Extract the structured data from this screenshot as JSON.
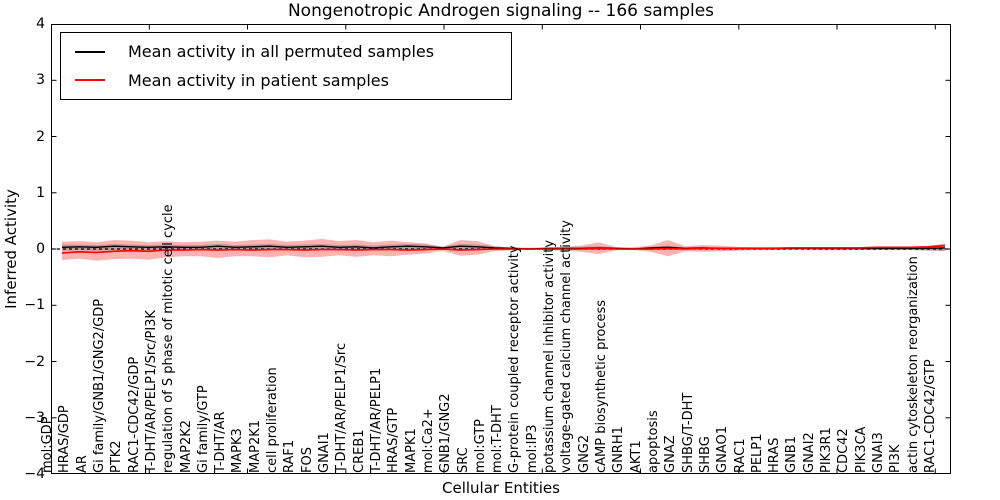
{
  "chart_data": {
    "type": "line",
    "title": "Nongenotropic Androgen signaling -- 166 samples",
    "xlabel": "Cellular Entities",
    "ylabel": "Inferred Activity",
    "ylim": [
      -4,
      4
    ],
    "yticks": [
      "4",
      "3",
      "2",
      "1",
      "0",
      "−1",
      "−2",
      "−3",
      "−4"
    ],
    "ytick_values": [
      4,
      3,
      2,
      1,
      0,
      -1,
      -2,
      -3,
      -4
    ],
    "grid": false,
    "legend_position": "upper left",
    "zero_line": {
      "value": 0,
      "style": "dashed",
      "color": "#000000"
    },
    "categories": [
      "mol:GDP",
      "HRAS/GDP",
      "AR",
      "Gi family/GNB1/GNG2/GDP",
      "PTK2",
      "RAC1-CDC42/GDP",
      "T-DHT/AR/PELP1/Src/PI3K",
      "regulation of S phase of mitotic cell cycle",
      "MAP2K2",
      "Gi family/GTP",
      "T-DHT/AR",
      "MAPK3",
      "MAP2K1",
      "cell proliferation",
      "RAF1",
      "FOS",
      "GNAI1",
      "T-DHT/AR/PELP1/Src",
      "CREB1",
      "T-DHT/AR/PELP1",
      "HRAS/GTP",
      "MAPK1",
      "mol:Ca2+",
      "GNB1/GNG2",
      "SRC",
      "mol:GTP",
      "mol:T-DHT",
      "G-protein coupled receptor activity",
      "mol:IP3",
      "potassium channel inhibitor activity",
      "voltage-gated calcium channel activity",
      "GNG2",
      "cAMP biosynthetic process",
      "GNRH1",
      "AKT1",
      "apoptosis",
      "GNAZ",
      "SHBG/T-DHT",
      "SHBG",
      "GNAO1",
      "RAC1",
      "PELP1",
      "HRAS",
      "GNB1",
      "GNAI2",
      "PIK3R1",
      "CDC42",
      "PIK3CA",
      "GNAI3",
      "PI3K",
      "actin cytoskeleton reorganization",
      "RAC1-CDC42/GTP"
    ],
    "series": [
      {
        "name": "Mean activity in all permuted samples",
        "color": "#000000",
        "band_color": "#787878",
        "band_opacity": 0.45,
        "values": [
          0.03,
          0.04,
          0.03,
          0.05,
          0.04,
          0.03,
          0.04,
          0.03,
          0.03,
          0.05,
          0.03,
          0.04,
          0.05,
          0.03,
          0.04,
          0.05,
          0.03,
          0.04,
          0.02,
          0.04,
          0.05,
          0.04,
          0.02,
          0.05,
          0.04,
          0.02,
          0.01,
          0.0,
          0.01,
          0.01,
          0.01,
          0.02,
          0.01,
          0.0,
          0.02,
          0.03,
          0.01,
          0.02,
          0.01,
          0.01,
          0.01,
          0.01,
          0.01,
          0.01,
          0.01,
          0.01,
          0.01,
          0.01,
          0.01,
          0.01,
          0.01,
          0.02
        ],
        "band_upper": [
          0.08,
          0.08,
          0.07,
          0.09,
          0.08,
          0.07,
          0.08,
          0.07,
          0.07,
          0.09,
          0.07,
          0.08,
          0.09,
          0.07,
          0.08,
          0.09,
          0.07,
          0.08,
          0.06,
          0.08,
          0.09,
          0.08,
          0.04,
          0.09,
          0.08,
          0.05,
          0.03,
          0.02,
          0.03,
          0.03,
          0.04,
          0.05,
          0.03,
          0.02,
          0.04,
          0.06,
          0.03,
          0.04,
          0.03,
          0.03,
          0.03,
          0.03,
          0.03,
          0.03,
          0.03,
          0.03,
          0.03,
          0.03,
          0.03,
          0.03,
          0.04,
          0.05
        ],
        "band_lower": [
          -0.03,
          -0.02,
          -0.03,
          -0.02,
          -0.02,
          -0.03,
          -0.02,
          -0.02,
          -0.02,
          -0.02,
          -0.02,
          -0.01,
          -0.02,
          -0.01,
          -0.02,
          -0.01,
          -0.01,
          -0.02,
          -0.01,
          -0.01,
          -0.02,
          -0.01,
          -0.01,
          -0.02,
          -0.01,
          -0.01,
          -0.01,
          -0.01,
          -0.01,
          -0.01,
          -0.01,
          -0.02,
          -0.01,
          -0.01,
          -0.02,
          -0.02,
          -0.01,
          -0.01,
          -0.01,
          -0.01,
          -0.01,
          -0.01,
          -0.01,
          -0.01,
          -0.02,
          -0.02,
          -0.02,
          -0.02,
          -0.02,
          -0.02,
          -0.03,
          -0.03
        ]
      },
      {
        "name": "Mean activity in patient samples",
        "color": "#ff0000",
        "band_color": "#ff0000",
        "band_opacity": 0.3,
        "values": [
          -0.07,
          -0.05,
          -0.06,
          -0.04,
          -0.03,
          -0.04,
          -0.02,
          -0.02,
          -0.01,
          -0.02,
          -0.01,
          -0.02,
          -0.01,
          -0.01,
          -0.02,
          -0.01,
          -0.01,
          -0.02,
          -0.01,
          -0.01,
          -0.02,
          -0.01,
          0.0,
          -0.02,
          -0.01,
          0.0,
          0.0,
          0.0,
          0.0,
          0.0,
          0.0,
          0.01,
          0.0,
          0.0,
          0.0,
          0.01,
          0.0,
          0.01,
          0.01,
          0.01,
          0.01,
          0.01,
          0.02,
          0.02,
          0.02,
          0.02,
          0.02,
          0.03,
          0.03,
          0.03,
          0.04,
          0.06
        ],
        "band_upper": [
          0.13,
          0.14,
          0.12,
          0.16,
          0.15,
          0.12,
          0.14,
          0.12,
          0.13,
          0.15,
          0.13,
          0.16,
          0.17,
          0.13,
          0.15,
          0.18,
          0.14,
          0.16,
          0.12,
          0.15,
          0.12,
          0.1,
          0.04,
          0.16,
          0.14,
          0.05,
          0.02,
          0.02,
          0.02,
          0.04,
          0.06,
          0.12,
          0.03,
          0.03,
          0.06,
          0.16,
          0.05,
          0.07,
          0.06,
          0.04,
          0.03,
          0.03,
          0.03,
          0.03,
          0.03,
          0.03,
          0.03,
          0.03,
          0.03,
          0.04,
          0.05,
          0.1
        ],
        "band_lower": [
          -0.2,
          -0.17,
          -0.21,
          -0.18,
          -0.17,
          -0.19,
          -0.15,
          -0.13,
          -0.13,
          -0.16,
          -0.13,
          -0.13,
          -0.15,
          -0.11,
          -0.15,
          -0.14,
          -0.11,
          -0.14,
          -0.11,
          -0.13,
          -0.1,
          -0.08,
          -0.03,
          -0.12,
          -0.1,
          -0.04,
          -0.02,
          -0.01,
          -0.02,
          -0.03,
          -0.05,
          -0.09,
          -0.02,
          -0.02,
          -0.05,
          -0.13,
          -0.04,
          -0.05,
          -0.04,
          -0.03,
          -0.02,
          -0.02,
          -0.01,
          -0.01,
          -0.01,
          -0.01,
          -0.01,
          -0.01,
          -0.01,
          -0.01,
          -0.02,
          -0.04
        ]
      }
    ]
  }
}
